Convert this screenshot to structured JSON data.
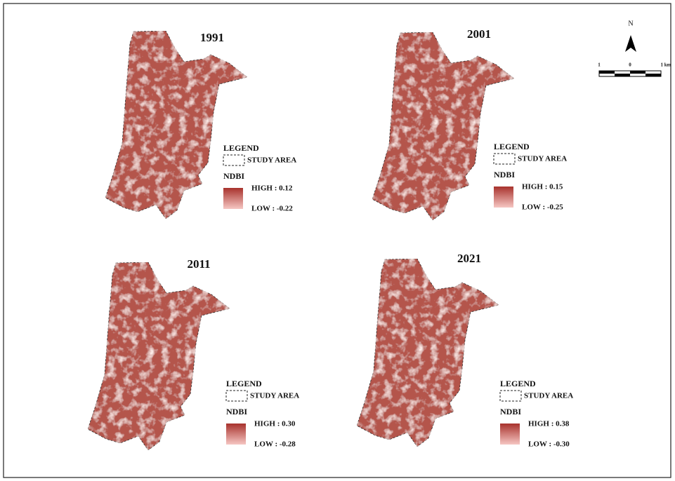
{
  "north_arrow": {
    "label": "N"
  },
  "scale_bar": {
    "labels": [
      "1",
      "0",
      "1 km"
    ]
  },
  "panels": [
    {
      "year": "1991",
      "legend": {
        "title": "LEGEND",
        "study_area": "STUDY AREA",
        "index": "NDBI",
        "high": "HIGH : 0.12",
        "low": "LOW : -0.22"
      }
    },
    {
      "year": "2001",
      "legend": {
        "title": "LEGEND",
        "study_area": "STUDY AREA",
        "index": "NDBI",
        "high": "HIGH : 0.15",
        "low": "LOW : -0.25"
      }
    },
    {
      "year": "2011",
      "legend": {
        "title": "LEGEND",
        "study_area": "STUDY AREA",
        "index": "NDBI",
        "high": "HIGH : 0.30",
        "low": "LOW : -0.28"
      }
    },
    {
      "year": "2021",
      "legend": {
        "title": "LEGEND",
        "study_area": "STUDY AREA",
        "index": "NDBI",
        "high": "HIGH : 0.38",
        "low": "LOW : -0.30"
      }
    }
  ]
}
